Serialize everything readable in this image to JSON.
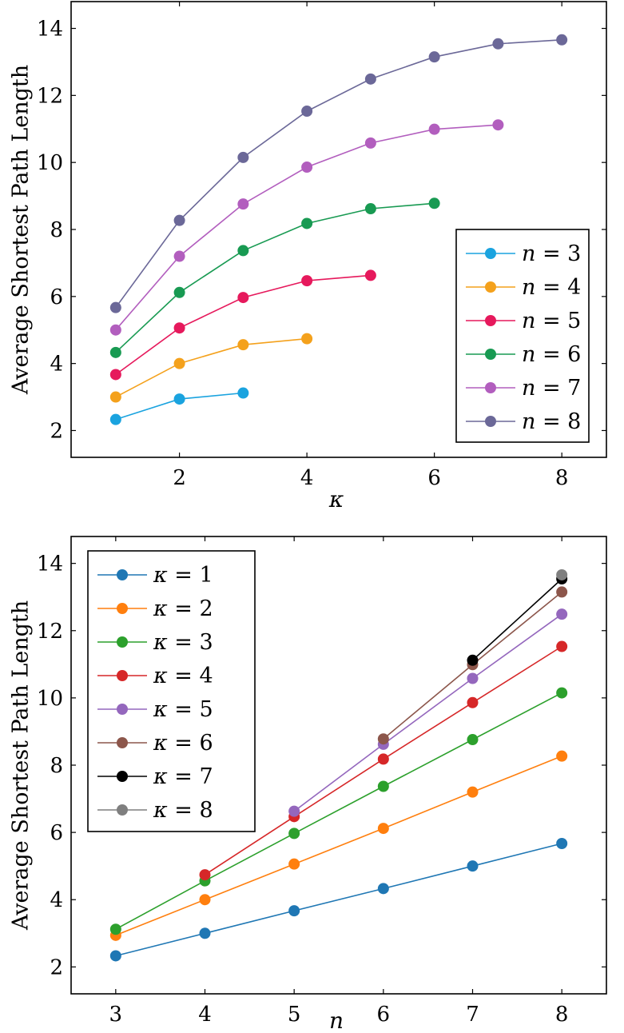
{
  "chart_data": [
    {
      "type": "line",
      "xlabel": "κ",
      "ylabel": "Average Shortest Path Length",
      "xlim": [
        0.3,
        8.7
      ],
      "ylim": [
        1.2,
        14.8
      ],
      "xticks": [
        2,
        4,
        6,
        8
      ],
      "yticks": [
        2,
        4,
        6,
        8,
        10,
        12,
        14
      ],
      "legend_position": "right",
      "series": [
        {
          "name": "n = 3",
          "symbol": "n",
          "value": "3",
          "color": "#1aa3df",
          "x": [
            1,
            2,
            3
          ],
          "y": [
            2.33,
            2.94,
            3.12
          ]
        },
        {
          "name": "n = 4",
          "symbol": "n",
          "value": "4",
          "color": "#f4a11c",
          "x": [
            1,
            2,
            3,
            4
          ],
          "y": [
            3.0,
            4.0,
            4.56,
            4.74
          ]
        },
        {
          "name": "n = 5",
          "symbol": "n",
          "value": "5",
          "color": "#e6195c",
          "x": [
            1,
            2,
            3,
            4,
            5
          ],
          "y": [
            3.67,
            5.06,
            5.97,
            6.47,
            6.63
          ]
        },
        {
          "name": "n = 6",
          "symbol": "n",
          "value": "6",
          "color": "#189a52",
          "x": [
            1,
            2,
            3,
            4,
            5,
            6
          ],
          "y": [
            4.33,
            6.12,
            7.37,
            8.18,
            8.62,
            8.78
          ]
        },
        {
          "name": "n = 7",
          "symbol": "n",
          "value": "7",
          "color": "#b25ebe",
          "x": [
            1,
            2,
            3,
            4,
            5,
            6,
            7
          ],
          "y": [
            5.0,
            7.2,
            8.76,
            9.86,
            10.58,
            10.99,
            11.12
          ]
        },
        {
          "name": "n = 8",
          "symbol": "n",
          "value": "8",
          "color": "#6b6898",
          "x": [
            1,
            2,
            3,
            4,
            5,
            6,
            7,
            8
          ],
          "y": [
            5.67,
            8.27,
            10.15,
            11.53,
            12.49,
            13.15,
            13.54,
            13.66
          ]
        }
      ]
    },
    {
      "type": "line",
      "xlabel": "n",
      "ylabel": "Average Shortest Path Length",
      "xlim": [
        2.5,
        8.5
      ],
      "ylim": [
        1.2,
        14.8
      ],
      "xticks": [
        3,
        4,
        5,
        6,
        7,
        8
      ],
      "yticks": [
        2,
        4,
        6,
        8,
        10,
        12,
        14
      ],
      "legend_position": "top-left",
      "series": [
        {
          "name": "κ = 1",
          "symbol": "κ",
          "value": "1",
          "color": "#1f77b4",
          "x": [
            3,
            4,
            5,
            6,
            7,
            8
          ],
          "y": [
            2.33,
            3.0,
            3.67,
            4.33,
            5.0,
            5.67
          ]
        },
        {
          "name": "κ = 2",
          "symbol": "κ",
          "value": "2",
          "color": "#ff7f0e",
          "x": [
            3,
            4,
            5,
            6,
            7,
            8
          ],
          "y": [
            2.94,
            4.0,
            5.06,
            6.12,
            7.2,
            8.27
          ]
        },
        {
          "name": "κ = 3",
          "symbol": "κ",
          "value": "3",
          "color": "#2ca02c",
          "x": [
            3,
            4,
            5,
            6,
            7,
            8
          ],
          "y": [
            3.12,
            4.56,
            5.97,
            7.37,
            8.76,
            10.15
          ]
        },
        {
          "name": "κ = 4",
          "symbol": "κ",
          "value": "4",
          "color": "#d62728",
          "x": [
            4,
            5,
            6,
            7,
            8
          ],
          "y": [
            4.74,
            6.47,
            8.18,
            9.86,
            11.53
          ]
        },
        {
          "name": "κ = 5",
          "symbol": "κ",
          "value": "5",
          "color": "#9467bd",
          "x": [
            5,
            6,
            7,
            8
          ],
          "y": [
            6.63,
            8.62,
            10.58,
            12.49
          ]
        },
        {
          "name": "κ = 6",
          "symbol": "κ",
          "value": "6",
          "color": "#8c564b",
          "x": [
            6,
            7,
            8
          ],
          "y": [
            8.78,
            10.99,
            13.15
          ]
        },
        {
          "name": "κ = 7",
          "symbol": "κ",
          "value": "7",
          "color": "#000000",
          "x": [
            7,
            8
          ],
          "y": [
            11.12,
            13.54
          ]
        },
        {
          "name": "κ = 8",
          "symbol": "κ",
          "value": "8",
          "color": "#7f7f7f",
          "x": [
            8
          ],
          "y": [
            13.66
          ]
        }
      ]
    }
  ]
}
